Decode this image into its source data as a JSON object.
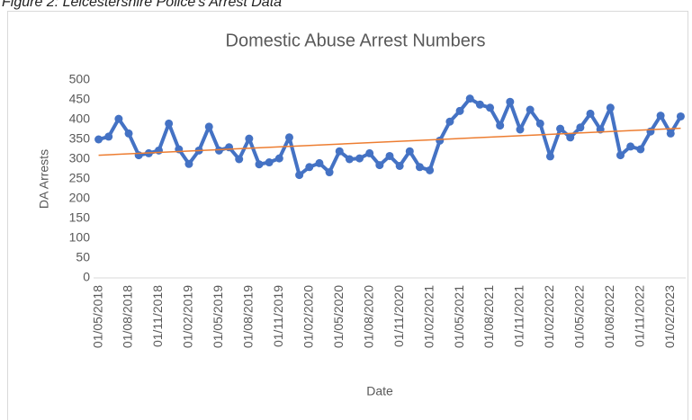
{
  "caption": "Figure 2: Leicestershire Police's Arrest Data",
  "chart_data": {
    "type": "line",
    "title": "Domestic Abuse Arrest Numbers",
    "x_label": "Date",
    "y_label": "DA Arrests",
    "categories": [
      "01/05/2018",
      null,
      null,
      "01/08/2018",
      null,
      null,
      "01/11/2018",
      null,
      null,
      "01/02/2019",
      null,
      null,
      "01/05/2019",
      null,
      null,
      "01/08/2019",
      null,
      null,
      "01/11/2019",
      null,
      null,
      "01/02/2020",
      null,
      null,
      "01/05/2020",
      null,
      null,
      "01/08/2020",
      null,
      null,
      "01/11/2020",
      null,
      null,
      "01/02/2021",
      null,
      null,
      "01/05/2021",
      null,
      null,
      "01/08/2021",
      null,
      null,
      "01/11/2021",
      null,
      null,
      "01/02/2022",
      null,
      null,
      "01/05/2022",
      null,
      null,
      "01/08/2022",
      null,
      null,
      "01/11/2022",
      null,
      null,
      "01/02/2023",
      null
    ],
    "series": [
      {
        "color": "#4472c4",
        "values": [
          350,
          357,
          402,
          365,
          310,
          315,
          322,
          390,
          325,
          288,
          322,
          382,
          322,
          330,
          300,
          352,
          287,
          292,
          302,
          355,
          260,
          280,
          290,
          267,
          320,
          300,
          302,
          315,
          285,
          308,
          283,
          320,
          280,
          272,
          347,
          395,
          422,
          453,
          438,
          430,
          385,
          445,
          375,
          425,
          390,
          307,
          377,
          355,
          380,
          415,
          375,
          430,
          310,
          332,
          325,
          370,
          410,
          365,
          408
        ]
      }
    ],
    "trendline": {
      "color": "#ed7d31",
      "start": 310,
      "end": 378
    },
    "ylim": [
      0,
      500
    ],
    "yticks": [
      0,
      50,
      100,
      150,
      200,
      250,
      300,
      350,
      400,
      450,
      500
    ],
    "grid": false
  }
}
